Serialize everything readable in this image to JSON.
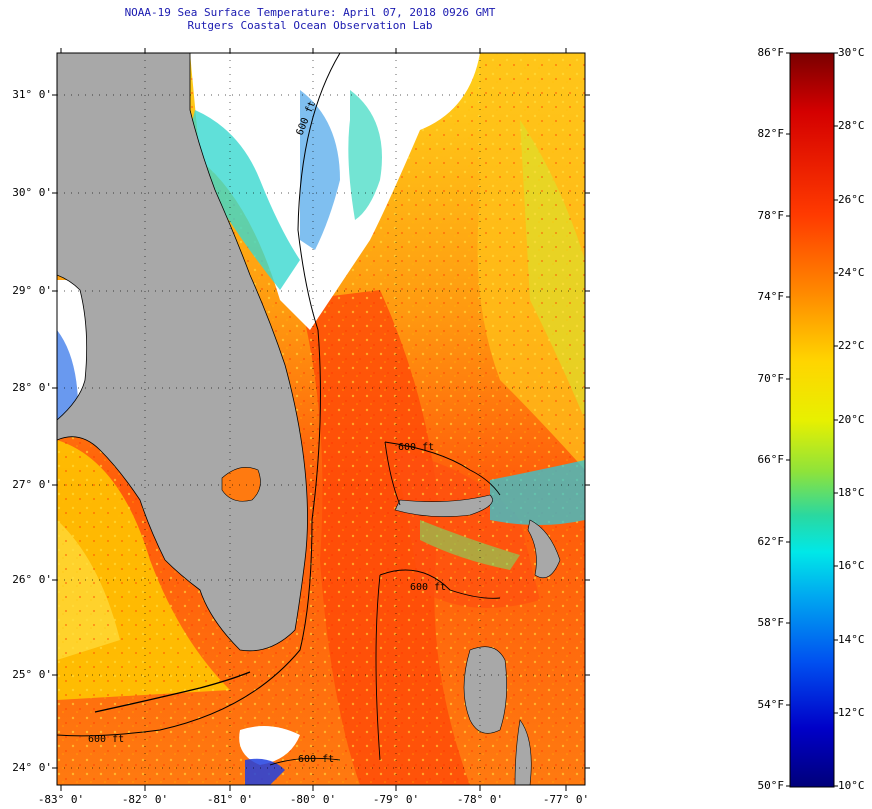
{
  "header": {
    "title": "NOAA-19 Sea Surface Temperature:  April 07, 2018 0926 GMT",
    "subtitle": "Rutgers Coastal Ocean Observation Lab"
  },
  "map": {
    "latitude_labels": [
      "31° 0'",
      "30° 0'",
      "29° 0'",
      "28° 0'",
      "27° 0'",
      "26° 0'",
      "25° 0'",
      "24° 0'"
    ],
    "longitude_labels": [
      "-83° 0'",
      "-82° 0'",
      "-81° 0'",
      "-80° 0'",
      "-79° 0'",
      "-78° 0'",
      "-77° 0'"
    ],
    "contour_labels": [
      "600 ft",
      "600 ft",
      "600 ft",
      "600 ft",
      "600 ft"
    ]
  },
  "colorbar": {
    "fahrenheit_labels": [
      "86°F",
      "82°F",
      "78°F",
      "74°F",
      "70°F",
      "66°F",
      "62°F",
      "58°F",
      "54°F",
      "50°F"
    ],
    "celsius_labels": [
      "30°C",
      "28°C",
      "26°C",
      "24°C",
      "22°C",
      "20°C",
      "18°C",
      "16°C",
      "14°C",
      "12°C",
      "10°C"
    ],
    "gradient_colors": [
      "#7a0000",
      "#d40000",
      "#ff3a00",
      "#ff8c00",
      "#ffd500",
      "#e8f000",
      "#8fe33a",
      "#2ad8a0",
      "#00e8e8",
      "#00a8f0",
      "#0050f0",
      "#0000c8",
      "#00007a"
    ]
  }
}
